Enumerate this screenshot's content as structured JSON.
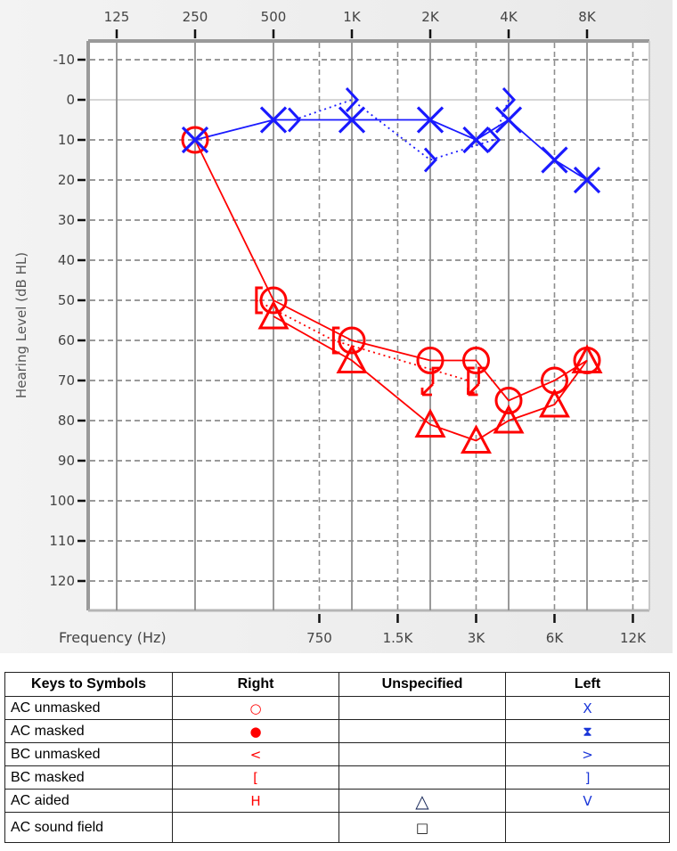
{
  "chart_data": {
    "type": "scatter",
    "title": "",
    "xlabel": "Frequency (Hz)",
    "ylabel": "Hearing Level (dB HL)",
    "x_scale": "log2 (octaves)",
    "top_ticks": [
      "125",
      "250",
      "500",
      "1K",
      "2K",
      "4K",
      "8K"
    ],
    "bottom_ticks": [
      "750",
      "1.5K",
      "3K",
      "6K",
      "12K"
    ],
    "y_ticks": [
      -10,
      0,
      10,
      20,
      30,
      40,
      50,
      60,
      70,
      80,
      90,
      100,
      110,
      120
    ],
    "ylim": [
      -10,
      130
    ],
    "y_inverted": true,
    "grid": true,
    "series": [
      {
        "name": "Left AC unmasked (X)",
        "color": "#1a1aff",
        "line": "solid",
        "points": [
          [
            250,
            10
          ],
          [
            500,
            5
          ],
          [
            1000,
            5
          ],
          [
            2000,
            5
          ],
          [
            3000,
            10
          ],
          [
            4000,
            5
          ],
          [
            6000,
            15
          ],
          [
            8000,
            20
          ]
        ]
      },
      {
        "name": "Left BC unmasked (>)",
        "color": "#1a1aff",
        "line": "dotted",
        "points": [
          [
            600,
            5
          ],
          [
            1000,
            0
          ],
          [
            2000,
            15
          ],
          [
            3500,
            10
          ],
          [
            4000,
            0
          ]
        ]
      },
      {
        "name": "Right AC unmasked (O)",
        "color": "#ff0000",
        "line": "solid",
        "points": [
          [
            250,
            10
          ],
          [
            500,
            50
          ],
          [
            1000,
            60
          ],
          [
            2000,
            65
          ],
          [
            3000,
            65
          ],
          [
            4000,
            75
          ],
          [
            6000,
            70
          ],
          [
            8000,
            65
          ]
        ]
      },
      {
        "name": "Right BC masked ([)",
        "color": "#ff0000",
        "line": "dotted",
        "points": [
          [
            430,
            50
          ],
          [
            850,
            60
          ],
          [
            2800,
            70
          ]
        ]
      },
      {
        "name": "Right BC unmasked (<, down arrow / no response)",
        "color": "#ff0000",
        "line": "none",
        "points": [
          [
            2000,
            70
          ],
          [
            3000,
            70
          ]
        ]
      },
      {
        "name": "AC aided unspecified (triangle)",
        "color": "#ff0000",
        "line": "solid",
        "points": [
          [
            500,
            54
          ],
          [
            1000,
            65
          ],
          [
            2000,
            81
          ],
          [
            3000,
            85
          ],
          [
            4000,
            80
          ],
          [
            6000,
            76
          ],
          [
            8000,
            65
          ]
        ]
      }
    ]
  },
  "axes": {
    "y_title": "Hearing Level (dB HL)",
    "x_title": "Frequency (Hz)"
  },
  "legend": {
    "headers": [
      "Keys to Symbols",
      "Right",
      "Unspecified",
      "Left"
    ],
    "rows": [
      {
        "key": "AC unmasked",
        "right": "○",
        "unspecified": "",
        "left": "X"
      },
      {
        "key": "AC masked",
        "right": "●",
        "unspecified": "",
        "left": "⧗"
      },
      {
        "key": "BC unmasked",
        "right": "<",
        "unspecified": "",
        "left": ">"
      },
      {
        "key": "BC masked",
        "right": "[",
        "unspecified": "",
        "left": "]"
      },
      {
        "key": "AC aided",
        "right": "H",
        "unspecified": "△",
        "left": "V"
      },
      {
        "key": "AC sound field",
        "right": "",
        "unspecified": "□",
        "left": ""
      }
    ]
  },
  "colors": {
    "right_ear": "#ff0000",
    "left_ear": "#1a1aff",
    "grid": "#999999",
    "panel_bg": "#ececec"
  }
}
